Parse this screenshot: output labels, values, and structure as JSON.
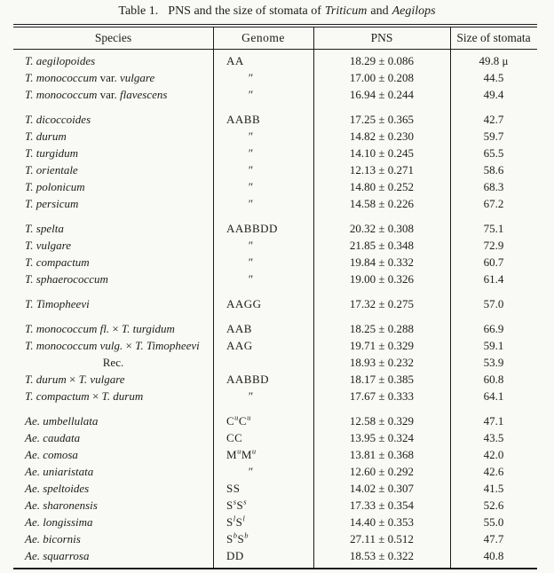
{
  "title": {
    "label": "Table 1.",
    "text_before": "PNS and the size of stomata of",
    "italic_1": "Triticum",
    "conjunction": "and",
    "italic_2": "Aegilops"
  },
  "table": {
    "headers": [
      "Species",
      "Genome",
      "PNS",
      "Size of stomata"
    ],
    "stomata_unit": "μ",
    "groups": [
      {
        "rows": [
          {
            "species": [
              {
                "t": "T. aegilopoides",
                "i": true
              }
            ],
            "genome": [
              {
                "t": "AA"
              }
            ],
            "pns": "18.29 ± 0.086",
            "stomata": "49.8 μ"
          },
          {
            "species": [
              {
                "t": "T. monococcum",
                "i": true
              },
              {
                "t": " var. ",
                "i": false
              },
              {
                "t": "vulgare",
                "i": true
              }
            ],
            "genome": [
              {
                "t": "″"
              }
            ],
            "ditto": true,
            "pns": "17.00 ± 0.208",
            "stomata": "44.5"
          },
          {
            "species": [
              {
                "t": "T. monococcum",
                "i": true
              },
              {
                "t": " var. ",
                "i": false
              },
              {
                "t": "flavescens",
                "i": true
              }
            ],
            "genome": [
              {
                "t": "″"
              }
            ],
            "ditto": true,
            "pns": "16.94 ± 0.244",
            "stomata": "49.4"
          }
        ]
      },
      {
        "rows": [
          {
            "species": [
              {
                "t": "T. dicoccoides",
                "i": true
              }
            ],
            "genome": [
              {
                "t": "AABB"
              }
            ],
            "pns": "17.25 ± 0.365",
            "stomata": "42.7"
          },
          {
            "species": [
              {
                "t": "T. durum",
                "i": true
              }
            ],
            "genome": [
              {
                "t": "″"
              }
            ],
            "ditto": true,
            "pns": "14.82 ± 0.230",
            "stomata": "59.7"
          },
          {
            "species": [
              {
                "t": "T. turgidum",
                "i": true
              }
            ],
            "genome": [
              {
                "t": "″"
              }
            ],
            "ditto": true,
            "pns": "14.10 ± 0.245",
            "stomata": "65.5"
          },
          {
            "species": [
              {
                "t": "T. orientale",
                "i": true
              }
            ],
            "genome": [
              {
                "t": "″"
              }
            ],
            "ditto": true,
            "pns": "12.13 ± 0.271",
            "stomata": "58.6"
          },
          {
            "species": [
              {
                "t": "T. polonicum",
                "i": true
              }
            ],
            "genome": [
              {
                "t": "″"
              }
            ],
            "ditto": true,
            "pns": "14.80 ± 0.252",
            "stomata": "68.3"
          },
          {
            "species": [
              {
                "t": "T. persicum",
                "i": true
              }
            ],
            "genome": [
              {
                "t": "″"
              }
            ],
            "ditto": true,
            "pns": "14.58 ± 0.226",
            "stomata": "67.2"
          }
        ]
      },
      {
        "rows": [
          {
            "species": [
              {
                "t": "T. spelta",
                "i": true
              }
            ],
            "genome": [
              {
                "t": "AABBDD"
              }
            ],
            "pns": "20.32 ± 0.308",
            "stomata": "75.1"
          },
          {
            "species": [
              {
                "t": "T. vulgare",
                "i": true
              }
            ],
            "genome": [
              {
                "t": "″"
              }
            ],
            "ditto": true,
            "pns": "21.85 ± 0.348",
            "stomata": "72.9"
          },
          {
            "species": [
              {
                "t": "T. compactum",
                "i": true
              }
            ],
            "genome": [
              {
                "t": "″"
              }
            ],
            "ditto": true,
            "pns": "19.84 ± 0.332",
            "stomata": "60.7"
          },
          {
            "species": [
              {
                "t": "T. sphaerococcum",
                "i": true
              }
            ],
            "genome": [
              {
                "t": "″"
              }
            ],
            "ditto": true,
            "pns": "19.00 ± 0.326",
            "stomata": "61.4"
          }
        ]
      },
      {
        "rows": [
          {
            "species": [
              {
                "t": "T. Timopheevi",
                "i": true
              }
            ],
            "genome": [
              {
                "t": "AAGG"
              }
            ],
            "pns": "17.32 ± 0.275",
            "stomata": "57.0"
          }
        ]
      },
      {
        "rows": [
          {
            "species": [
              {
                "t": "T. monococcum fl.",
                "i": true
              },
              {
                "t": " × ",
                "i": false
              },
              {
                "t": "T. turgidum",
                "i": true
              }
            ],
            "genome": [
              {
                "t": "AAB"
              }
            ],
            "pns": "18.25 ± 0.288",
            "stomata": "66.9"
          },
          {
            "species": [
              {
                "t": "T. monococcum vulg.",
                "i": true
              },
              {
                "t": " × ",
                "i": false
              },
              {
                "t": "T. Timopheevi",
                "i": true
              }
            ],
            "genome": [
              {
                "t": "AAG"
              }
            ],
            "pns": "19.71 ± 0.329",
            "stomata": "59.1"
          },
          {
            "species": [
              {
                "t": "Rec.",
                "i": false
              }
            ],
            "species_align": "center",
            "genome": [],
            "pns": "18.93 ± 0.232",
            "stomata": "53.9"
          },
          {
            "species": [
              {
                "t": "T. durum",
                "i": true
              },
              {
                "t": " × ",
                "i": false
              },
              {
                "t": "T. vulgare",
                "i": true
              }
            ],
            "genome": [
              {
                "t": "AABBD"
              }
            ],
            "pns": "18.17 ± 0.385",
            "stomata": "60.8"
          },
          {
            "species": [
              {
                "t": "T. compactum",
                "i": true
              },
              {
                "t": " × ",
                "i": false
              },
              {
                "t": "T. durum",
                "i": true
              }
            ],
            "genome": [
              {
                "t": "″"
              }
            ],
            "ditto": true,
            "pns": "17.67 ± 0.333",
            "stomata": "64.1"
          }
        ]
      },
      {
        "rows": [
          {
            "species": [
              {
                "t": "Ae. umbellulata",
                "i": true
              }
            ],
            "genome": [
              {
                "t": "C"
              },
              {
                "t": "u",
                "s": true
              },
              {
                "t": "C"
              },
              {
                "t": "u",
                "s": true
              }
            ],
            "pns": "12.58 ± 0.329",
            "stomata": "47.1"
          },
          {
            "species": [
              {
                "t": "Ae. caudata",
                "i": true
              }
            ],
            "genome": [
              {
                "t": "CC"
              }
            ],
            "pns": "13.95 ± 0.324",
            "stomata": "43.5"
          },
          {
            "species": [
              {
                "t": "Ae. comosa",
                "i": true
              }
            ],
            "genome": [
              {
                "t": "M"
              },
              {
                "t": "u",
                "s": true
              },
              {
                "t": "M"
              },
              {
                "t": "u",
                "s": true
              }
            ],
            "pns": "13.81 ± 0.368",
            "stomata": "42.0"
          },
          {
            "species": [
              {
                "t": "Ae. uniaristata",
                "i": true
              }
            ],
            "genome": [
              {
                "t": "″"
              }
            ],
            "ditto": true,
            "pns": "12.60 ± 0.292",
            "stomata": "42.6"
          },
          {
            "species": [
              {
                "t": "Ae. speltoides",
                "i": true
              }
            ],
            "genome": [
              {
                "t": "SS"
              }
            ],
            "pns": "14.02 ± 0.307",
            "stomata": "41.5"
          },
          {
            "species": [
              {
                "t": "Ae. sharonensis",
                "i": true
              }
            ],
            "genome": [
              {
                "t": "S"
              },
              {
                "t": "s",
                "s": true
              },
              {
                "t": "S"
              },
              {
                "t": "s",
                "s": true
              }
            ],
            "pns": "17.33 ± 0.354",
            "stomata": "52.6"
          },
          {
            "species": [
              {
                "t": "Ae. longissima",
                "i": true
              }
            ],
            "genome": [
              {
                "t": "S"
              },
              {
                "t": "l",
                "s": true
              },
              {
                "t": "S"
              },
              {
                "t": "l",
                "s": true
              }
            ],
            "pns": "14.40 ± 0.353",
            "stomata": "55.0"
          },
          {
            "species": [
              {
                "t": "Ae. bicornis",
                "i": true
              }
            ],
            "genome": [
              {
                "t": "S"
              },
              {
                "t": "b",
                "s": true
              },
              {
                "t": "S"
              },
              {
                "t": "b",
                "s": true
              }
            ],
            "pns": "27.11 ± 0.512",
            "stomata": "47.7"
          },
          {
            "species": [
              {
                "t": "Ae. squarrosa",
                "i": true
              }
            ],
            "genome": [
              {
                "t": "DD"
              }
            ],
            "pns": "18.53 ± 0.322",
            "stomata": "40.8"
          }
        ]
      }
    ]
  }
}
